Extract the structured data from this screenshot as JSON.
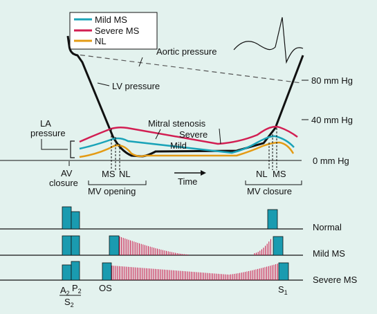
{
  "colors": {
    "background": "#e3f2ee",
    "mild_ms": "#1aa3b8",
    "severe_ms": "#d21e52",
    "nl": "#e49b14",
    "black": "#111111",
    "murmur": "#cc1144",
    "sound_box": "#1a9bb0"
  },
  "legend": {
    "items": [
      {
        "label": "Mild MS",
        "color": "#1aa3b8"
      },
      {
        "label": "Severe MS",
        "color": "#d21e52"
      },
      {
        "label": "NL",
        "color": "#e49b14"
      }
    ]
  },
  "pressure_panel": {
    "aortic_label": "Aortic pressure",
    "lv_label": "LV pressure",
    "la_label_line1": "LA",
    "la_label_line2": "pressure",
    "mitral_label": "Mitral stenosis",
    "severe_label": "Severe",
    "mild_label": "Mild",
    "scale_80": "80 mm Hg",
    "scale_40": "40 mm Hg",
    "scale_0": "0 mm Hg",
    "av_label": "AV",
    "closure_label": "closure",
    "ms_label": "MS",
    "nl_label": "NL",
    "mv_opening_label": "MV opening",
    "time_label": "Time",
    "mv_closure_label": "MV closure"
  },
  "phono_panel": {
    "rows": [
      "Normal",
      "Mild MS",
      "Severe MS"
    ],
    "a_label": "A",
    "a_sub": "2",
    "p_label": "P",
    "p_sub": "2",
    "s2_label": "S",
    "s2_sub": "2",
    "os_label": "OS",
    "s1_label": "S",
    "s1_sub": "1"
  }
}
